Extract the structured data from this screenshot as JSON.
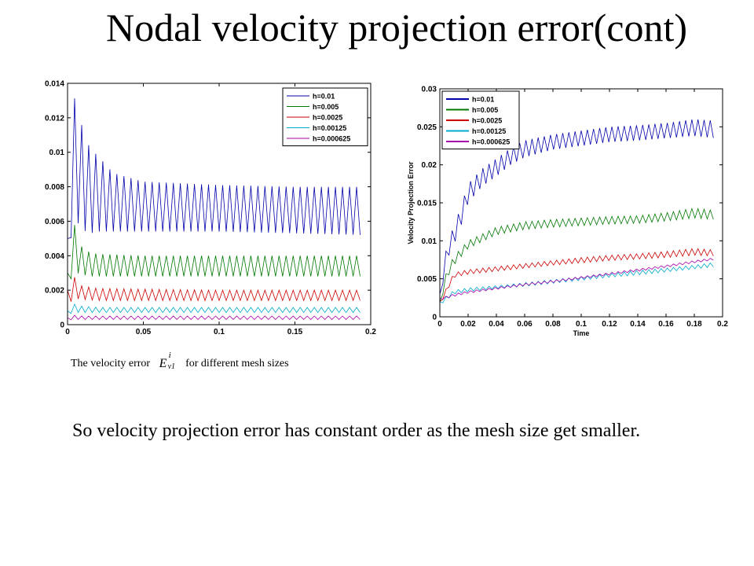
{
  "title": "Nodal velocity projection error(cont)",
  "caption": {
    "prefix": "The velocity error",
    "symbol_base": "E",
    "symbol_sup": "i",
    "symbol_sub": "v1",
    "suffix": "for different mesh sizes"
  },
  "conclusion": "So velocity projection error has constant order as the mesh size get smaller.",
  "chart_data": [
    {
      "type": "line",
      "title": "",
      "xlabel": "",
      "ylabel": "",
      "xlim": [
        0,
        0.2
      ],
      "ylim": [
        0,
        0.014
      ],
      "x_ticks": [
        "0",
        "0.05",
        "0.1",
        "0.15",
        "0.2"
      ],
      "y_ticks": [
        "0",
        "0.002",
        "0.004",
        "0.006",
        "0.008",
        "0.01",
        "0.012",
        "0.014"
      ],
      "grid": false,
      "legend_position": "top-right",
      "series": [
        {
          "name": "h=0.01",
          "color": "#0000aa",
          "x": [
            0,
            0.003,
            0.006,
            0.01,
            0.015,
            0.02,
            0.03,
            0.05,
            0.1,
            0.15,
            0.195
          ],
          "y_upper": [
            0.005,
            0.0128,
            0.0134,
            0.0112,
            0.0102,
            0.0098,
            0.0088,
            0.0083,
            0.0081,
            0.008,
            0.008
          ],
          "y_lower": [
            0.0035,
            0.0055,
            0.006,
            0.0055,
            0.0053,
            0.0054,
            0.0054,
            0.0054,
            0.0054,
            0.0053,
            0.0052
          ]
        },
        {
          "name": "h=0.005",
          "color": "#007700",
          "x": [
            0,
            0.003,
            0.006,
            0.01,
            0.015,
            0.02,
            0.05,
            0.1,
            0.15,
            0.195
          ],
          "y_upper": [
            0.003,
            0.0065,
            0.0052,
            0.0044,
            0.0042,
            0.0041,
            0.004,
            0.004,
            0.004,
            0.004
          ],
          "y_lower": [
            0.0015,
            0.003,
            0.003,
            0.0029,
            0.0028,
            0.0028,
            0.0028,
            0.0028,
            0.0028,
            0.0028
          ]
        },
        {
          "name": "h=0.0025",
          "color": "#cc0000",
          "x": [
            0,
            0.003,
            0.006,
            0.02,
            0.1,
            0.195
          ],
          "y_upper": [
            0.002,
            0.0033,
            0.0023,
            0.0021,
            0.002,
            0.002
          ],
          "y_lower": [
            0.0008,
            0.0015,
            0.0015,
            0.0014,
            0.0014,
            0.0014
          ]
        },
        {
          "name": "h=0.00125",
          "color": "#00aacc",
          "x": [
            0,
            0.003,
            0.006,
            0.02,
            0.1,
            0.195
          ],
          "y_upper": [
            0.0008,
            0.0013,
            0.0011,
            0.001,
            0.001,
            0.001
          ],
          "y_lower": [
            0.0005,
            0.0007,
            0.0007,
            0.0007,
            0.0007,
            0.0007
          ]
        },
        {
          "name": "h=0.000625",
          "color": "#aa00aa",
          "x": [
            0,
            0.003,
            0.006,
            0.02,
            0.1,
            0.195
          ],
          "y_upper": [
            0.0004,
            0.0006,
            0.0005,
            0.0005,
            0.0005,
            0.0005
          ],
          "y_lower": [
            0.0002,
            0.0003,
            0.0003,
            0.0003,
            0.0003,
            0.0003
          ]
        }
      ]
    },
    {
      "type": "line",
      "title": "",
      "xlabel": "Time",
      "ylabel": "Velocity Projection Error",
      "xlim": [
        0,
        0.2
      ],
      "ylim": [
        0,
        0.03
      ],
      "x_ticks": [
        "0",
        "0.02",
        "0.04",
        "0.06",
        "0.08",
        "0.1",
        "0.12",
        "0.14",
        "0.16",
        "0.18",
        "0.2"
      ],
      "y_ticks": [
        "0",
        "0.005",
        "0.01",
        "0.015",
        "0.02",
        "0.025",
        "0.03"
      ],
      "grid": false,
      "legend_position": "top-left",
      "series": [
        {
          "name": "h=0.01",
          "color": "#0000aa",
          "x": [
            0,
            0.005,
            0.01,
            0.015,
            0.02,
            0.03,
            0.04,
            0.05,
            0.06,
            0.08,
            0.1,
            0.12,
            0.14,
            0.16,
            0.18,
            0.195
          ],
          "y_upper": [
            0.003,
            0.0095,
            0.012,
            0.0145,
            0.0175,
            0.0195,
            0.0208,
            0.0222,
            0.0232,
            0.024,
            0.0245,
            0.025,
            0.0252,
            0.0255,
            0.026,
            0.0258
          ],
          "y_lower": [
            0.002,
            0.0075,
            0.0095,
            0.012,
            0.015,
            0.0172,
            0.0185,
            0.02,
            0.021,
            0.022,
            0.0225,
            0.023,
            0.0232,
            0.0235,
            0.0238,
            0.0235
          ]
        },
        {
          "name": "h=0.005",
          "color": "#007700",
          "x": [
            0,
            0.005,
            0.01,
            0.02,
            0.04,
            0.06,
            0.08,
            0.1,
            0.12,
            0.14,
            0.16,
            0.18,
            0.195
          ],
          "y_upper": [
            0.002,
            0.0062,
            0.008,
            0.01,
            0.0118,
            0.0125,
            0.0128,
            0.013,
            0.0132,
            0.0133,
            0.0137,
            0.0143,
            0.014
          ],
          "y_lower": [
            0.0015,
            0.005,
            0.0068,
            0.009,
            0.0108,
            0.0115,
            0.0118,
            0.012,
            0.0122,
            0.0123,
            0.0126,
            0.013,
            0.0128
          ]
        },
        {
          "name": "h=0.0025",
          "color": "#cc0000",
          "x": [
            0,
            0.01,
            0.02,
            0.04,
            0.06,
            0.08,
            0.1,
            0.12,
            0.14,
            0.16,
            0.18,
            0.195
          ],
          "y_upper": [
            0.002,
            0.0058,
            0.0062,
            0.0066,
            0.007,
            0.0074,
            0.0078,
            0.0081,
            0.0083,
            0.0086,
            0.009,
            0.0088
          ],
          "y_lower": [
            0.0015,
            0.0052,
            0.0056,
            0.006,
            0.0064,
            0.0068,
            0.0071,
            0.0074,
            0.0076,
            0.0078,
            0.0081,
            0.008
          ]
        },
        {
          "name": "h=0.00125",
          "color": "#00aacc",
          "x": [
            0,
            0.01,
            0.02,
            0.04,
            0.06,
            0.08,
            0.1,
            0.12,
            0.14,
            0.16,
            0.18,
            0.195
          ],
          "y_upper": [
            0.002,
            0.0035,
            0.0038,
            0.0041,
            0.0045,
            0.0049,
            0.0053,
            0.0057,
            0.0061,
            0.0064,
            0.0068,
            0.0072
          ],
          "y_lower": [
            0.0015,
            0.003,
            0.0033,
            0.0037,
            0.004,
            0.0044,
            0.0048,
            0.0052,
            0.0055,
            0.0059,
            0.0063,
            0.0066
          ]
        },
        {
          "name": "h=0.000625",
          "color": "#aa00aa",
          "x": [
            0,
            0.01,
            0.02,
            0.04,
            0.06,
            0.08,
            0.1,
            0.12,
            0.14,
            0.16,
            0.18,
            0.195
          ],
          "y_upper": [
            0.0025,
            0.003,
            0.0034,
            0.0039,
            0.0044,
            0.0048,
            0.0053,
            0.0058,
            0.0063,
            0.0068,
            0.0074,
            0.0078
          ],
          "y_lower": [
            0.0022,
            0.0027,
            0.0031,
            0.0036,
            0.0041,
            0.0045,
            0.005,
            0.0055,
            0.006,
            0.0065,
            0.0071,
            0.0075
          ]
        }
      ]
    }
  ]
}
